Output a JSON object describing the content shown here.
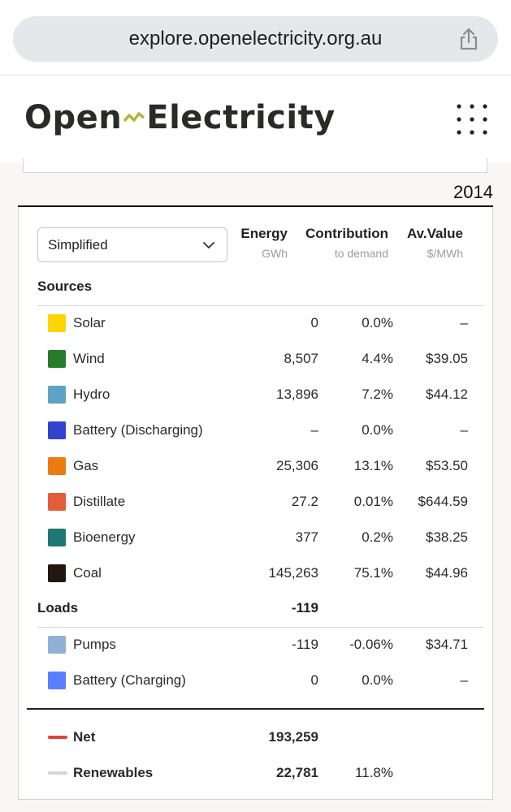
{
  "browser": {
    "url": "explore.openelectricity.org.au"
  },
  "site": {
    "logo_left": "Open",
    "logo_right": "Electricity"
  },
  "year": "2014",
  "table": {
    "view_select": "Simplified",
    "headers": {
      "energy": "Energy",
      "energy_unit": "GWh",
      "contribution": "Contribution",
      "contribution_unit": "to demand",
      "av_value": "Av.Value",
      "av_value_unit": "$/MWh"
    },
    "sources_label": "Sources",
    "sources": [
      {
        "label": "Solar",
        "color": "#fed500",
        "energy": "0",
        "contribution": "0.0%",
        "av_value": "–"
      },
      {
        "label": "Wind",
        "color": "#2a7a2e",
        "energy": "8,507",
        "contribution": "4.4%",
        "av_value": "$39.05"
      },
      {
        "label": "Hydro",
        "color": "#5ea2c6",
        "energy": "13,896",
        "contribution": "7.2%",
        "av_value": "$44.12"
      },
      {
        "label": "Battery (Discharging)",
        "color": "#3143cf",
        "energy": "–",
        "contribution": "0.0%",
        "av_value": "–"
      },
      {
        "label": "Gas",
        "color": "#ea7c12",
        "energy": "25,306",
        "contribution": "13.1%",
        "av_value": "$53.50"
      },
      {
        "label": "Distillate",
        "color": "#e45d3a",
        "energy": "27.2",
        "contribution": "0.01%",
        "av_value": "$644.59"
      },
      {
        "label": "Bioenergy",
        "color": "#1f7873",
        "energy": "377",
        "contribution": "0.2%",
        "av_value": "$38.25"
      },
      {
        "label": "Coal",
        "color": "#231710",
        "energy": "145,263",
        "contribution": "75.1%",
        "av_value": "$44.96"
      }
    ],
    "loads_label": "Loads",
    "loads_total": "-119",
    "loads": [
      {
        "label": "Pumps",
        "color": "#8fb1d5",
        "energy": "-119",
        "contribution": "-0.06%",
        "av_value": "$34.71"
      },
      {
        "label": "Battery (Charging)",
        "color": "#5a7ffe",
        "energy": "0",
        "contribution": "0.0%",
        "av_value": "–"
      }
    ],
    "net": {
      "label": "Net",
      "color": "#e0433a",
      "energy": "193,259"
    },
    "renewables": {
      "label": "Renewables",
      "color": "#d6d6d6",
      "energy": "22,781",
      "contribution": "11.8%"
    }
  }
}
